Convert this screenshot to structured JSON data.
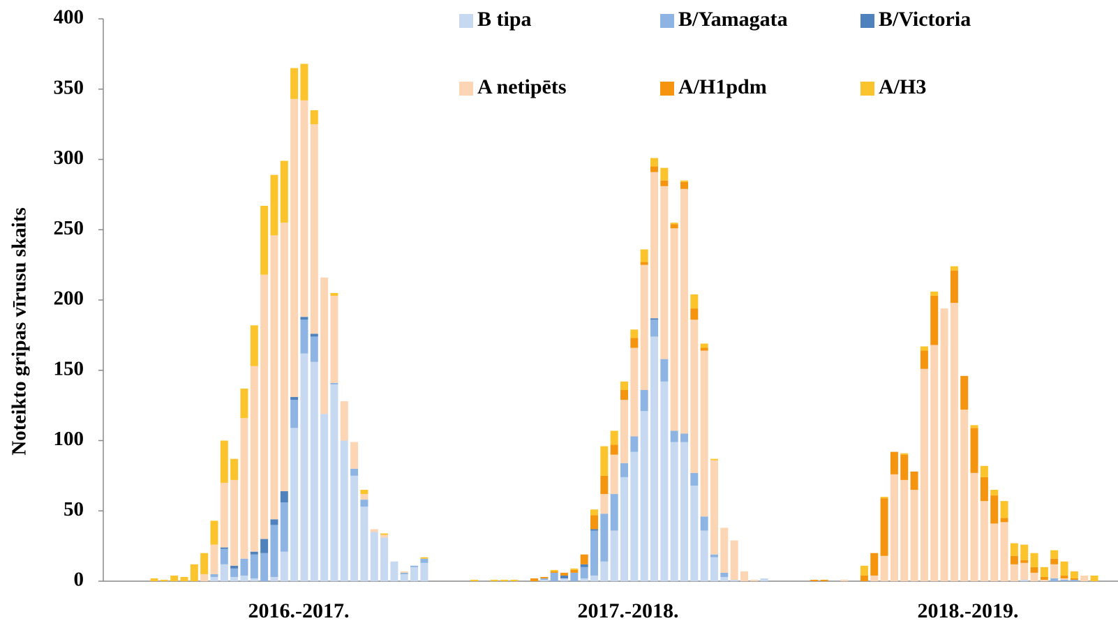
{
  "chart_data": {
    "type": "stacked_bar",
    "y_label": "Noteikto gripas vīrusu skaits",
    "group_labels": [
      "2016.-2017.",
      "2017.-2018.",
      "2018.-2019."
    ],
    "categories": [
      null,
      null,
      null,
      null,
      null,
      null,
      null,
      null,
      null,
      null,
      null,
      null,
      null,
      null,
      null,
      null,
      null,
      null,
      null,
      null,
      null,
      null,
      null,
      null,
      null,
      null,
      null,
      null,
      null,
      null,
      null,
      null,
      null,
      null,
      null,
      null,
      null,
      null,
      null,
      null,
      null,
      null,
      null,
      null,
      null,
      null,
      null,
      null,
      null,
      null,
      null,
      null,
      null,
      null,
      null,
      null,
      null,
      null,
      null,
      null,
      null,
      null,
      null,
      null,
      null,
      null,
      null,
      null,
      null,
      null,
      null,
      null,
      null,
      null,
      null,
      null,
      null,
      null,
      null,
      null,
      null,
      null,
      null,
      null,
      null,
      null,
      null,
      null,
      null,
      null,
      null,
      null,
      null,
      null,
      null
    ],
    "series": [
      {
        "name": "B tipa",
        "color": "#c6d9f1",
        "values": [
          0,
          0,
          0,
          0,
          0,
          0,
          3,
          12,
          3,
          4,
          2,
          0,
          3,
          21,
          109,
          162,
          156,
          119,
          140,
          100,
          75,
          53,
          35,
          31,
          14,
          5,
          10,
          13,
          0,
          0,
          0,
          0,
          0,
          0,
          0,
          0,
          0,
          0,
          0,
          1,
          0,
          2,
          0,
          2,
          4,
          14,
          36,
          74,
          92,
          121,
          174,
          142,
          99,
          99,
          68,
          36,
          17,
          3,
          1,
          0,
          0,
          2,
          0,
          0,
          0,
          0,
          0,
          0,
          0,
          0,
          0,
          0,
          0,
          0,
          0,
          0,
          0,
          0,
          0,
          0,
          0,
          0,
          0,
          0,
          0,
          0,
          0,
          1,
          0,
          0,
          0,
          0,
          0,
          0,
          0
        ]
      },
      {
        "name": "B/Yamagata",
        "color": "#8db4e2",
        "values": [
          0,
          0,
          0,
          0,
          0,
          0,
          2,
          11,
          6,
          12,
          17,
          20,
          37,
          35,
          20,
          24,
          18,
          0,
          1,
          0,
          5,
          5,
          0,
          0,
          0,
          1,
          1,
          3,
          0,
          0,
          0,
          0,
          0,
          0,
          0,
          0,
          0,
          0,
          0,
          1,
          6,
          0,
          6,
          8,
          32,
          34,
          26,
          10,
          11,
          15,
          12,
          16,
          8,
          6,
          9,
          10,
          2,
          3,
          0,
          0,
          0,
          0,
          0,
          0,
          0,
          0,
          0,
          0,
          0,
          0,
          0,
          0,
          0,
          0,
          0,
          0,
          0,
          0,
          0,
          0,
          0,
          0,
          0,
          0,
          0,
          0,
          0,
          0,
          0,
          0,
          2,
          1,
          1,
          0,
          0
        ]
      },
      {
        "name": "B/Victoria",
        "color": "#4f81bd",
        "values": [
          0,
          0,
          0,
          0,
          0,
          0,
          0,
          1,
          2,
          0,
          2,
          10,
          4,
          8,
          2,
          2,
          2,
          0,
          0,
          0,
          0,
          0,
          0,
          0,
          0,
          0,
          0,
          0,
          0,
          0,
          0,
          0,
          0,
          0,
          0,
          0,
          0,
          0,
          0,
          0,
          0,
          2,
          0,
          2,
          1,
          0,
          0,
          0,
          0,
          0,
          1,
          0,
          0,
          0,
          0,
          0,
          0,
          0,
          0,
          0,
          0,
          0,
          0,
          0,
          0,
          0,
          0,
          0,
          0,
          0,
          0,
          0,
          0,
          0,
          0,
          0,
          0,
          0,
          0,
          0,
          0,
          0,
          0,
          0,
          0,
          0,
          0,
          0,
          0,
          0,
          0,
          0,
          0,
          0,
          0
        ]
      },
      {
        "name": "A netipēts",
        "color": "#fcd5b4",
        "values": [
          0,
          0,
          0,
          0,
          0,
          5,
          21,
          46,
          61,
          100,
          132,
          188,
          202,
          191,
          212,
          154,
          149,
          97,
          62,
          28,
          19,
          4,
          2,
          2,
          0,
          1,
          0,
          0,
          0,
          0,
          0,
          0,
          0,
          0,
          0,
          0,
          0,
          0,
          0,
          0,
          0,
          0,
          0,
          0,
          0,
          14,
          28,
          45,
          63,
          89,
          104,
          123,
          144,
          174,
          109,
          118,
          67,
          32,
          28,
          7,
          1,
          0,
          0,
          0,
          0,
          0,
          0,
          0,
          0,
          1,
          0,
          0,
          4,
          18,
          76,
          72,
          65,
          151,
          168,
          194,
          198,
          122,
          77,
          57,
          41,
          42,
          12,
          12,
          6,
          1,
          10,
          1,
          0,
          4,
          0
        ]
      },
      {
        "name": "A/H1pdm",
        "color": "#f5940f",
        "values": [
          0,
          0,
          0,
          0,
          0,
          0,
          0,
          0,
          0,
          0,
          0,
          0,
          0,
          0,
          0,
          0,
          0,
          0,
          0,
          0,
          0,
          0,
          0,
          0,
          0,
          0,
          0,
          0,
          0,
          0,
          0,
          0,
          0,
          0,
          0,
          0,
          0,
          0,
          2,
          1,
          1,
          2,
          2,
          7,
          10,
          13,
          7,
          7,
          7,
          2,
          4,
          4,
          3,
          5,
          8,
          2,
          0,
          0,
          0,
          0,
          0,
          0,
          0,
          0,
          0,
          0,
          1,
          1,
          0,
          0,
          0,
          4,
          16,
          41,
          16,
          18,
          13,
          13,
          35,
          0,
          23,
          24,
          32,
          17,
          20,
          3,
          6,
          2,
          4,
          2,
          4,
          2,
          1,
          0,
          0
        ]
      },
      {
        "name": "A/H3",
        "color": "#fbc42c",
        "values": [
          2,
          1,
          4,
          3,
          12,
          15,
          17,
          30,
          15,
          21,
          29,
          49,
          43,
          44,
          22,
          26,
          10,
          0,
          2,
          0,
          0,
          3,
          0,
          1,
          0,
          0,
          0,
          1,
          0,
          0,
          0,
          0,
          1,
          0,
          1,
          1,
          1,
          0,
          0,
          0,
          1,
          0,
          1,
          0,
          4,
          21,
          10,
          6,
          6,
          9,
          6,
          9,
          1,
          1,
          10,
          3,
          1,
          0,
          0,
          0,
          0,
          0,
          0,
          0,
          0,
          0,
          0,
          0,
          0,
          0,
          0,
          7,
          0,
          1,
          0,
          1,
          0,
          3,
          3,
          0,
          3,
          0,
          2,
          8,
          4,
          12,
          9,
          11,
          10,
          7,
          6,
          10,
          5,
          0,
          4
        ]
      }
    ],
    "ylim": [
      0,
      400
    ],
    "yticks": [
      0,
      50,
      100,
      150,
      200,
      250,
      300,
      350,
      400
    ],
    "grid": false,
    "legend": "top"
  }
}
